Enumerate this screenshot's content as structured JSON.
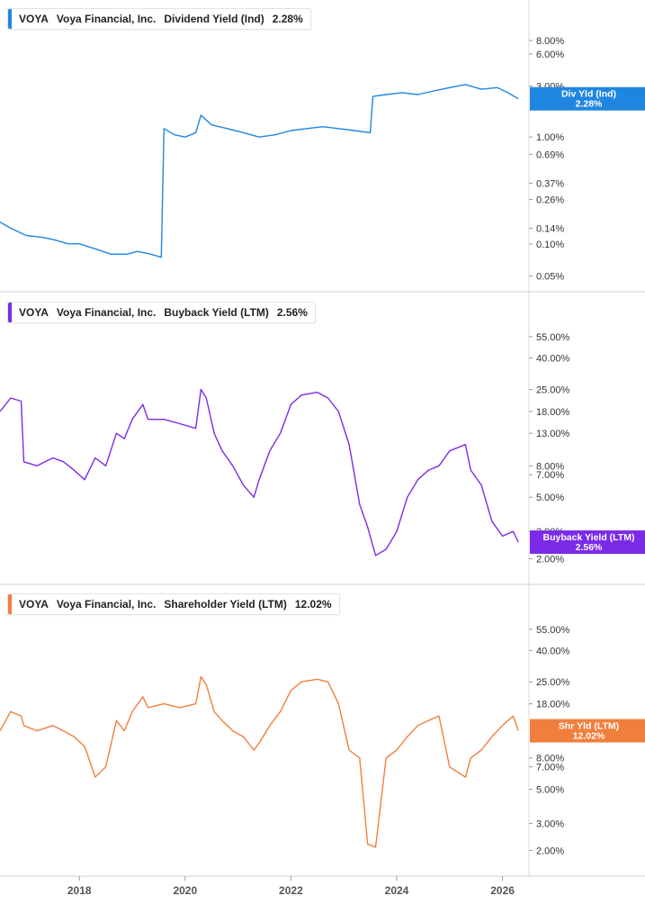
{
  "chart_data": {
    "type": "line",
    "x_axis": {
      "ticks": [
        "2018",
        "2020",
        "2022",
        "2024",
        "2026"
      ]
    },
    "panels": [
      {
        "ticker": "VOYA",
        "company": "Voya Financial, Inc.",
        "metric": "Dividend Yield (Ind)",
        "value": "2.28%",
        "color": "#1f86e0",
        "y_scale": "log",
        "ylim": [
          0.045,
          13
        ],
        "y_ticks": [
          "8.00%",
          "6.00%",
          "3.00%",
          "1.00%",
          "0.69%",
          "0.37%",
          "0.26%",
          "0.14%",
          "0.10%",
          "0.05%"
        ],
        "tag_line1": "Div Yld (Ind)",
        "tag_line2": "2.28%",
        "series": {
          "x": [
            2016.5,
            2016.7,
            2017.0,
            2017.3,
            2017.5,
            2017.8,
            2018.0,
            2018.3,
            2018.6,
            2018.9,
            2019.1,
            2019.35,
            2019.55,
            2019.6,
            2019.8,
            2020.0,
            2020.2,
            2020.3,
            2020.5,
            2020.8,
            2021.1,
            2021.4,
            2021.7,
            2022.0,
            2022.3,
            2022.6,
            2022.9,
            2023.2,
            2023.5,
            2023.55,
            2023.8,
            2024.1,
            2024.4,
            2024.7,
            2025.0,
            2025.3,
            2025.6,
            2025.9,
            2026.1,
            2026.3
          ],
          "y": [
            0.16,
            0.14,
            0.12,
            0.115,
            0.11,
            0.1,
            0.1,
            0.09,
            0.08,
            0.08,
            0.085,
            0.08,
            0.075,
            1.2,
            1.05,
            1.0,
            1.1,
            1.6,
            1.3,
            1.2,
            1.1,
            1.0,
            1.05,
            1.15,
            1.2,
            1.25,
            1.2,
            1.15,
            1.1,
            2.4,
            2.5,
            2.6,
            2.5,
            2.7,
            2.9,
            3.1,
            2.8,
            2.9,
            2.6,
            2.28
          ]
        }
      },
      {
        "ticker": "VOYA",
        "company": "Voya Financial, Inc.",
        "metric": "Buyback Yield (LTM)",
        "value": "2.56%",
        "color": "#7b2be8",
        "y_scale": "log",
        "ylim": [
          1.6,
          80
        ],
        "y_ticks": [
          "55.00%",
          "40.00%",
          "25.00%",
          "18.00%",
          "13.00%",
          "8.00%",
          "7.00%",
          "5.00%",
          "3.00%",
          "2.00%"
        ],
        "tag_line1": "Buyback Yield (LTM)",
        "tag_line2": "2.56%",
        "series": {
          "x": [
            2016.5,
            2016.7,
            2016.9,
            2016.95,
            2017.2,
            2017.5,
            2017.7,
            2017.9,
            2018.1,
            2018.3,
            2018.5,
            2018.7,
            2018.85,
            2019.0,
            2019.2,
            2019.3,
            2019.6,
            2019.9,
            2020.2,
            2020.3,
            2020.4,
            2020.55,
            2020.7,
            2020.9,
            2021.1,
            2021.3,
            2021.4,
            2021.6,
            2021.8,
            2022.0,
            2022.2,
            2022.5,
            2022.7,
            2022.9,
            2023.1,
            2023.3,
            2023.45,
            2023.6,
            2023.8,
            2024.0,
            2024.2,
            2024.4,
            2024.6,
            2024.8,
            2025.0,
            2025.3,
            2025.4,
            2025.6,
            2025.8,
            2026.0,
            2026.2,
            2026.3
          ],
          "y": [
            18,
            22,
            21,
            8.5,
            8,
            9,
            8.5,
            7.5,
            6.5,
            9,
            8,
            13,
            12,
            16,
            20,
            16,
            16,
            15,
            14,
            25,
            22,
            13,
            10,
            8,
            6,
            5,
            6.5,
            10,
            13,
            20,
            23,
            24,
            22,
            18,
            11,
            4.5,
            3.2,
            2.1,
            2.3,
            3,
            5,
            6.5,
            7.5,
            8,
            10,
            11,
            7.5,
            6,
            3.5,
            2.8,
            3,
            2.56
          ]
        }
      },
      {
        "ticker": "VOYA",
        "company": "Voya Financial, Inc.",
        "metric": "Shareholder Yield (LTM)",
        "value": "12.02%",
        "color": "#f07f3e",
        "y_scale": "log",
        "ylim": [
          1.6,
          80
        ],
        "y_ticks": [
          "55.00%",
          "40.00%",
          "25.00%",
          "18.00%",
          "8.00%",
          "7.00%",
          "5.00%",
          "3.00%",
          "2.00%"
        ],
        "tag_line1": "Shr Yld (LTM)",
        "tag_line2": "12.02%",
        "series": {
          "x": [
            2016.5,
            2016.7,
            2016.9,
            2016.95,
            2017.2,
            2017.5,
            2017.7,
            2017.9,
            2018.1,
            2018.3,
            2018.5,
            2018.7,
            2018.85,
            2019.0,
            2019.2,
            2019.3,
            2019.6,
            2019.9,
            2020.2,
            2020.3,
            2020.4,
            2020.55,
            2020.7,
            2020.9,
            2021.1,
            2021.3,
            2021.4,
            2021.6,
            2021.8,
            2022.0,
            2022.2,
            2022.5,
            2022.7,
            2022.9,
            2023.1,
            2023.3,
            2023.45,
            2023.6,
            2023.8,
            2024.0,
            2024.2,
            2024.4,
            2024.6,
            2024.8,
            2025.0,
            2025.3,
            2025.4,
            2025.6,
            2025.8,
            2026.0,
            2026.2,
            2026.3
          ],
          "y": [
            12,
            16,
            15,
            13,
            12,
            13,
            12,
            11,
            9.5,
            6,
            7,
            14,
            12,
            16,
            20,
            17,
            18,
            17,
            18,
            27,
            24,
            16,
            14,
            12,
            11,
            9,
            10,
            13,
            16,
            22,
            25,
            26,
            25,
            18,
            9,
            8,
            2.2,
            2.1,
            8,
            9,
            11,
            13,
            14,
            15,
            7,
            6,
            8,
            9,
            11,
            13,
            15,
            12.02
          ]
        }
      }
    ]
  }
}
